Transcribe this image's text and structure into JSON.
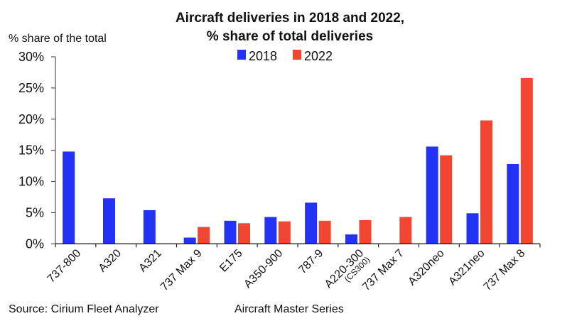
{
  "chart_data": {
    "type": "bar",
    "title": "Aircraft deliveries in 2018 and 2022,",
    "subtitle": "% share of total deliveries",
    "ylabel": "% share of the total",
    "xlabel": "",
    "ylim": [
      0,
      30
    ],
    "yticks": [
      0,
      5,
      10,
      15,
      20,
      25,
      30
    ],
    "ytick_labels": [
      "0%",
      "5%",
      "10%",
      "15%",
      "20%",
      "25%",
      "30%"
    ],
    "grid": false,
    "legend_position": "top-center",
    "categories": [
      "737-800",
      "A320",
      "A321",
      "737 Max 9",
      "E175",
      "A350-900",
      "787-9",
      "A220-300",
      "737 Max 7",
      "A320neo",
      "A321neo",
      "737 Max 8"
    ],
    "category_sublabels": [
      "",
      "",
      "",
      "",
      "",
      "",
      "",
      "(CS300)",
      "",
      "",
      "",
      ""
    ],
    "series": [
      {
        "name": "2018",
        "color": "#2333f5",
        "values": [
          14.8,
          7.3,
          5.4,
          1.0,
          3.7,
          4.3,
          6.6,
          1.5,
          0,
          15.6,
          4.9,
          12.8
        ]
      },
      {
        "name": "2022",
        "color": "#f04632",
        "values": [
          0,
          0,
          0,
          2.7,
          3.3,
          3.6,
          3.7,
          3.8,
          4.3,
          14.2,
          19.8,
          26.6
        ]
      }
    ],
    "footer_source": "Source: Cirium Fleet Analyzer",
    "footer_note": "Aircraft Master Series"
  }
}
